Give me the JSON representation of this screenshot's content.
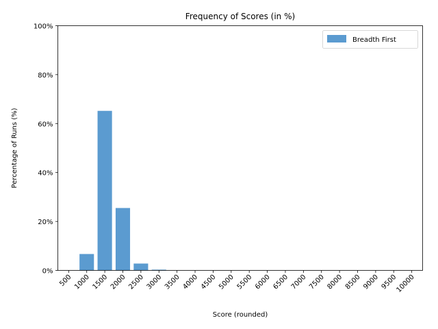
{
  "chart_data": {
    "type": "bar",
    "title": "Frequency of Scores (in %)",
    "xlabel": "Score (rounded)",
    "ylabel": "Percentage of Runs (%)",
    "categories": [
      "500",
      "1000",
      "1500",
      "2000",
      "2500",
      "3000",
      "3500",
      "4000",
      "4500",
      "5000",
      "5500",
      "6000",
      "6500",
      "7000",
      "7500",
      "8000",
      "8500",
      "9000",
      "9500",
      "10000"
    ],
    "series": [
      {
        "name": "Breadth First",
        "color": "#5b9bd0",
        "values": [
          0,
          6.7,
          65.2,
          25.5,
          2.8,
          0.3,
          0,
          0,
          0,
          0,
          0,
          0,
          0,
          0,
          0,
          0,
          0,
          0,
          0,
          0
        ]
      }
    ],
    "ylim": [
      0,
      100
    ],
    "yticks": [
      0,
      20,
      40,
      60,
      80,
      100
    ],
    "ytick_labels": [
      "0%",
      "20%",
      "40%",
      "60%",
      "80%",
      "100%"
    ],
    "grid": false,
    "legend_position": "top-right"
  }
}
